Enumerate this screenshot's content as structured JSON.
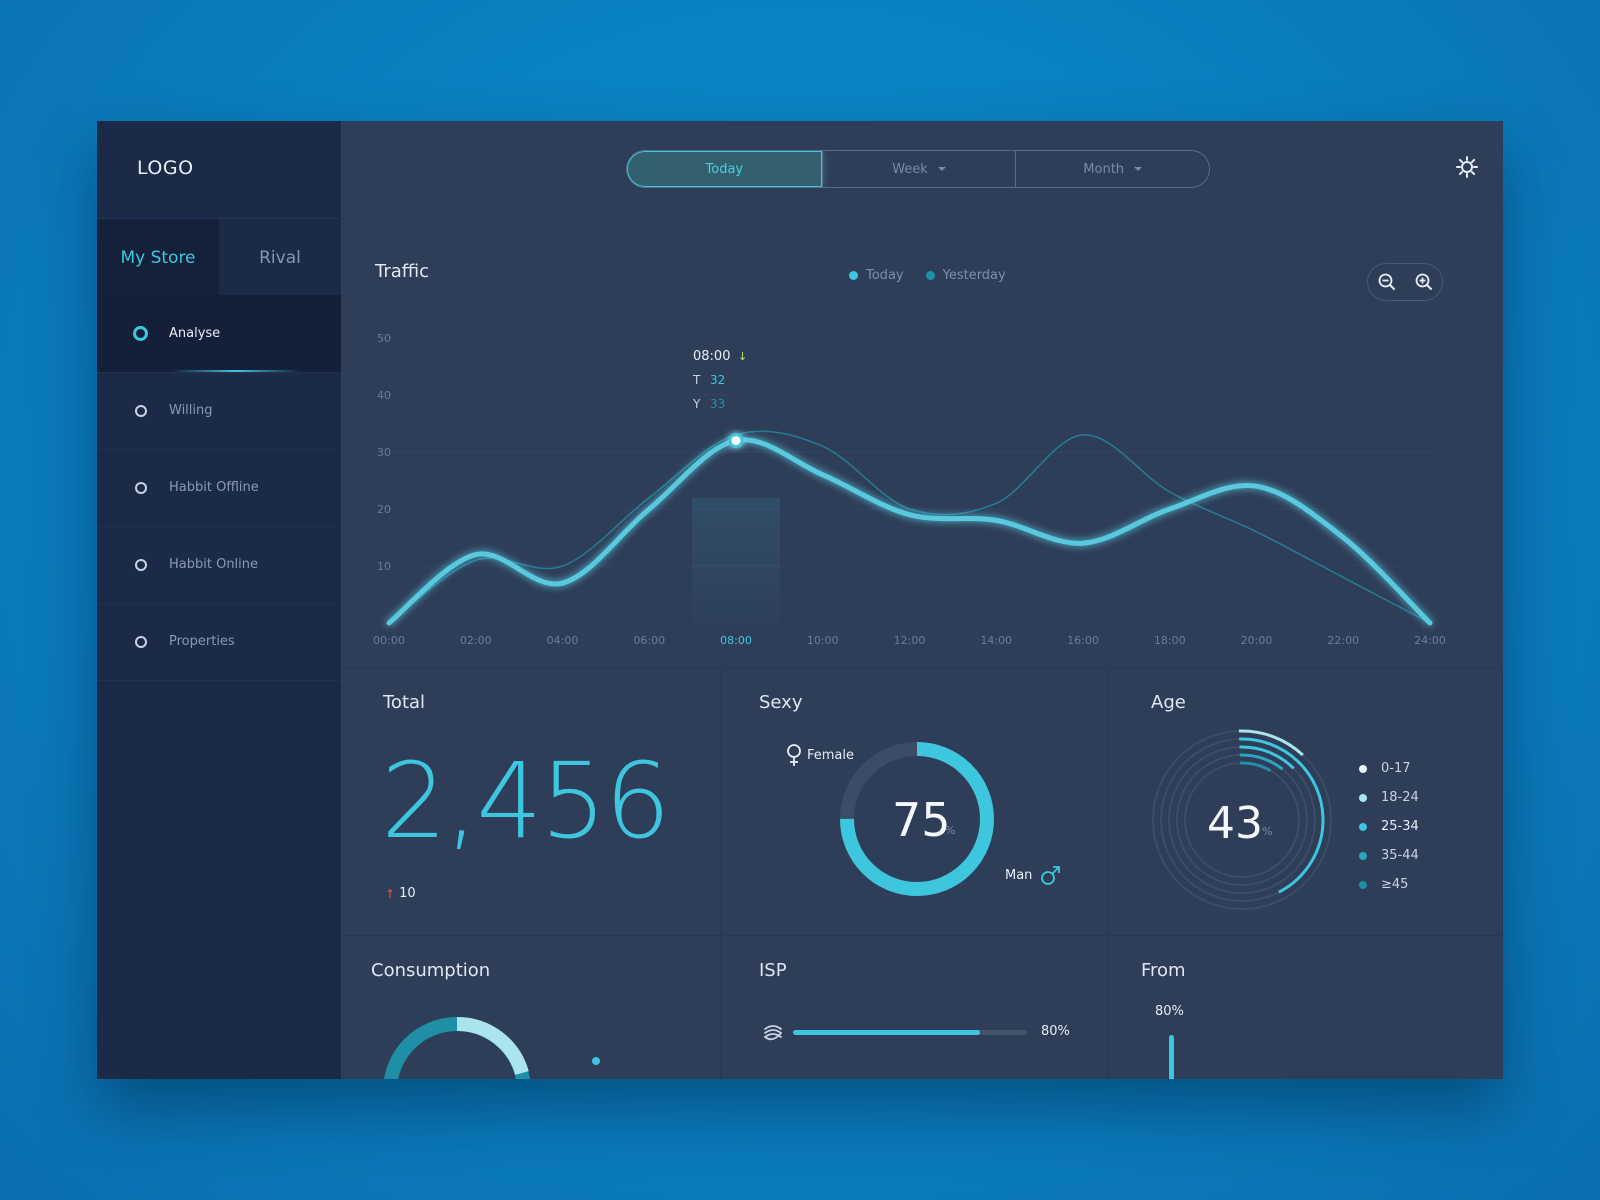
{
  "sidebar": {
    "logo": "LOGO",
    "tabs": [
      {
        "label": "My Store"
      },
      {
        "label": "Rival"
      }
    ],
    "items": [
      {
        "label": "Analyse"
      },
      {
        "label": "Willing"
      },
      {
        "label": "Habbit Offline"
      },
      {
        "label": "Habbit Online"
      },
      {
        "label": "Properties"
      }
    ]
  },
  "topbar": {
    "periods": [
      {
        "label": "Today"
      },
      {
        "label": "Week"
      },
      {
        "label": "Month"
      }
    ],
    "settings_icon": "gear-icon"
  },
  "traffic": {
    "title": "Traffic",
    "legend": [
      {
        "label": "Today",
        "color": "#3ec6df"
      },
      {
        "label": "Yesterday",
        "color": "#1f8fa6"
      }
    ],
    "tooltip": {
      "time": "08:00",
      "t_label": "T",
      "t_value": "32",
      "y_label": "Y",
      "y_value": "33"
    },
    "zoom_out_icon": "zoom-out-icon",
    "zoom_in_icon": "zoom-in-icon"
  },
  "chart_data": {
    "type": "line",
    "x": [
      "00:00",
      "02:00",
      "04:00",
      "06:00",
      "08:00",
      "10:00",
      "12:00",
      "14:00",
      "16:00",
      "18:00",
      "20:00",
      "22:00",
      "24:00"
    ],
    "ylim": [
      0,
      50
    ],
    "yticks": [
      "50",
      "40",
      "30",
      "20",
      "10"
    ],
    "highlight_x": "08:00",
    "series": [
      {
        "name": "Today",
        "values": [
          0,
          12,
          7,
          20,
          32,
          26,
          19,
          18,
          14,
          20,
          24,
          15,
          0
        ]
      },
      {
        "name": "Yesterday",
        "values": [
          0,
          11,
          10,
          22,
          33,
          31,
          20,
          21,
          33,
          23,
          16,
          8,
          0
        ]
      }
    ]
  },
  "total": {
    "title": "Total",
    "value": "2,456",
    "delta": "10"
  },
  "sexy": {
    "title": "Sexy",
    "female_label": "Female",
    "man_label": "Man",
    "value": "75",
    "unit": "%",
    "fraction": 0.75
  },
  "age": {
    "title": "Age",
    "value": "43",
    "unit": "%",
    "groups": [
      {
        "label": "0-17",
        "color": "#e6f1f8"
      },
      {
        "label": "18-24",
        "color": "#a9e4ef"
      },
      {
        "label": "25-34",
        "color": "#3ec6df"
      },
      {
        "label": "35-44",
        "color": "#2aa6bf"
      },
      {
        "label": "≥45",
        "color": "#1f8fa6"
      }
    ]
  },
  "consumption": {
    "title": "Consumption"
  },
  "isp": {
    "title": "ISP",
    "value": "80%",
    "fraction": 0.8
  },
  "from": {
    "title": "From",
    "value": "80%"
  }
}
